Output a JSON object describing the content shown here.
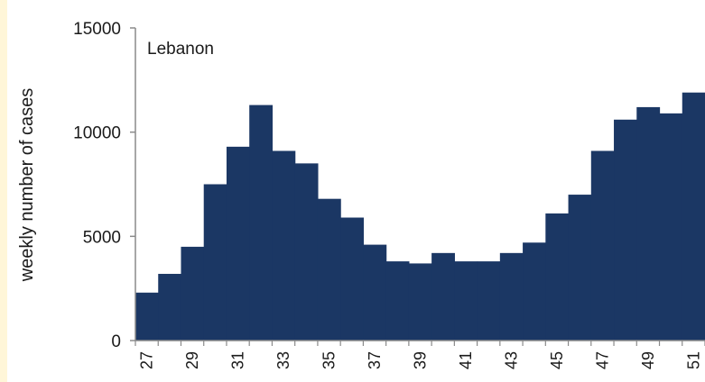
{
  "chart_data": {
    "type": "bar",
    "annotation": "Lebanon",
    "ylabel": "weekly number of cases",
    "xlabel": "",
    "ylim": [
      0,
      15000
    ],
    "yticks": [
      0,
      5000,
      10000,
      15000
    ],
    "ytick_labels": [
      "0",
      "5000",
      "10000",
      "15000"
    ],
    "categories": [
      "27",
      "28",
      "29",
      "30",
      "31",
      "32",
      "33",
      "34",
      "35",
      "36",
      "37",
      "38",
      "39",
      "40",
      "41",
      "42",
      "43",
      "44",
      "45",
      "46",
      "47",
      "48",
      "49",
      "50",
      "51"
    ],
    "x_tick_labels": [
      "27",
      "29",
      "31",
      "33",
      "35",
      "37",
      "39",
      "41",
      "43",
      "45",
      "47",
      "49",
      "51"
    ],
    "values": [
      2300,
      3200,
      4500,
      7500,
      9300,
      11300,
      9100,
      8500,
      6800,
      5900,
      4600,
      3800,
      3700,
      4200,
      3800,
      3800,
      4200,
      4700,
      6100,
      7000,
      9100,
      10600,
      11200,
      10900,
      11900
    ],
    "bar_color": "#1b3764",
    "grid": false,
    "legend": "none"
  }
}
